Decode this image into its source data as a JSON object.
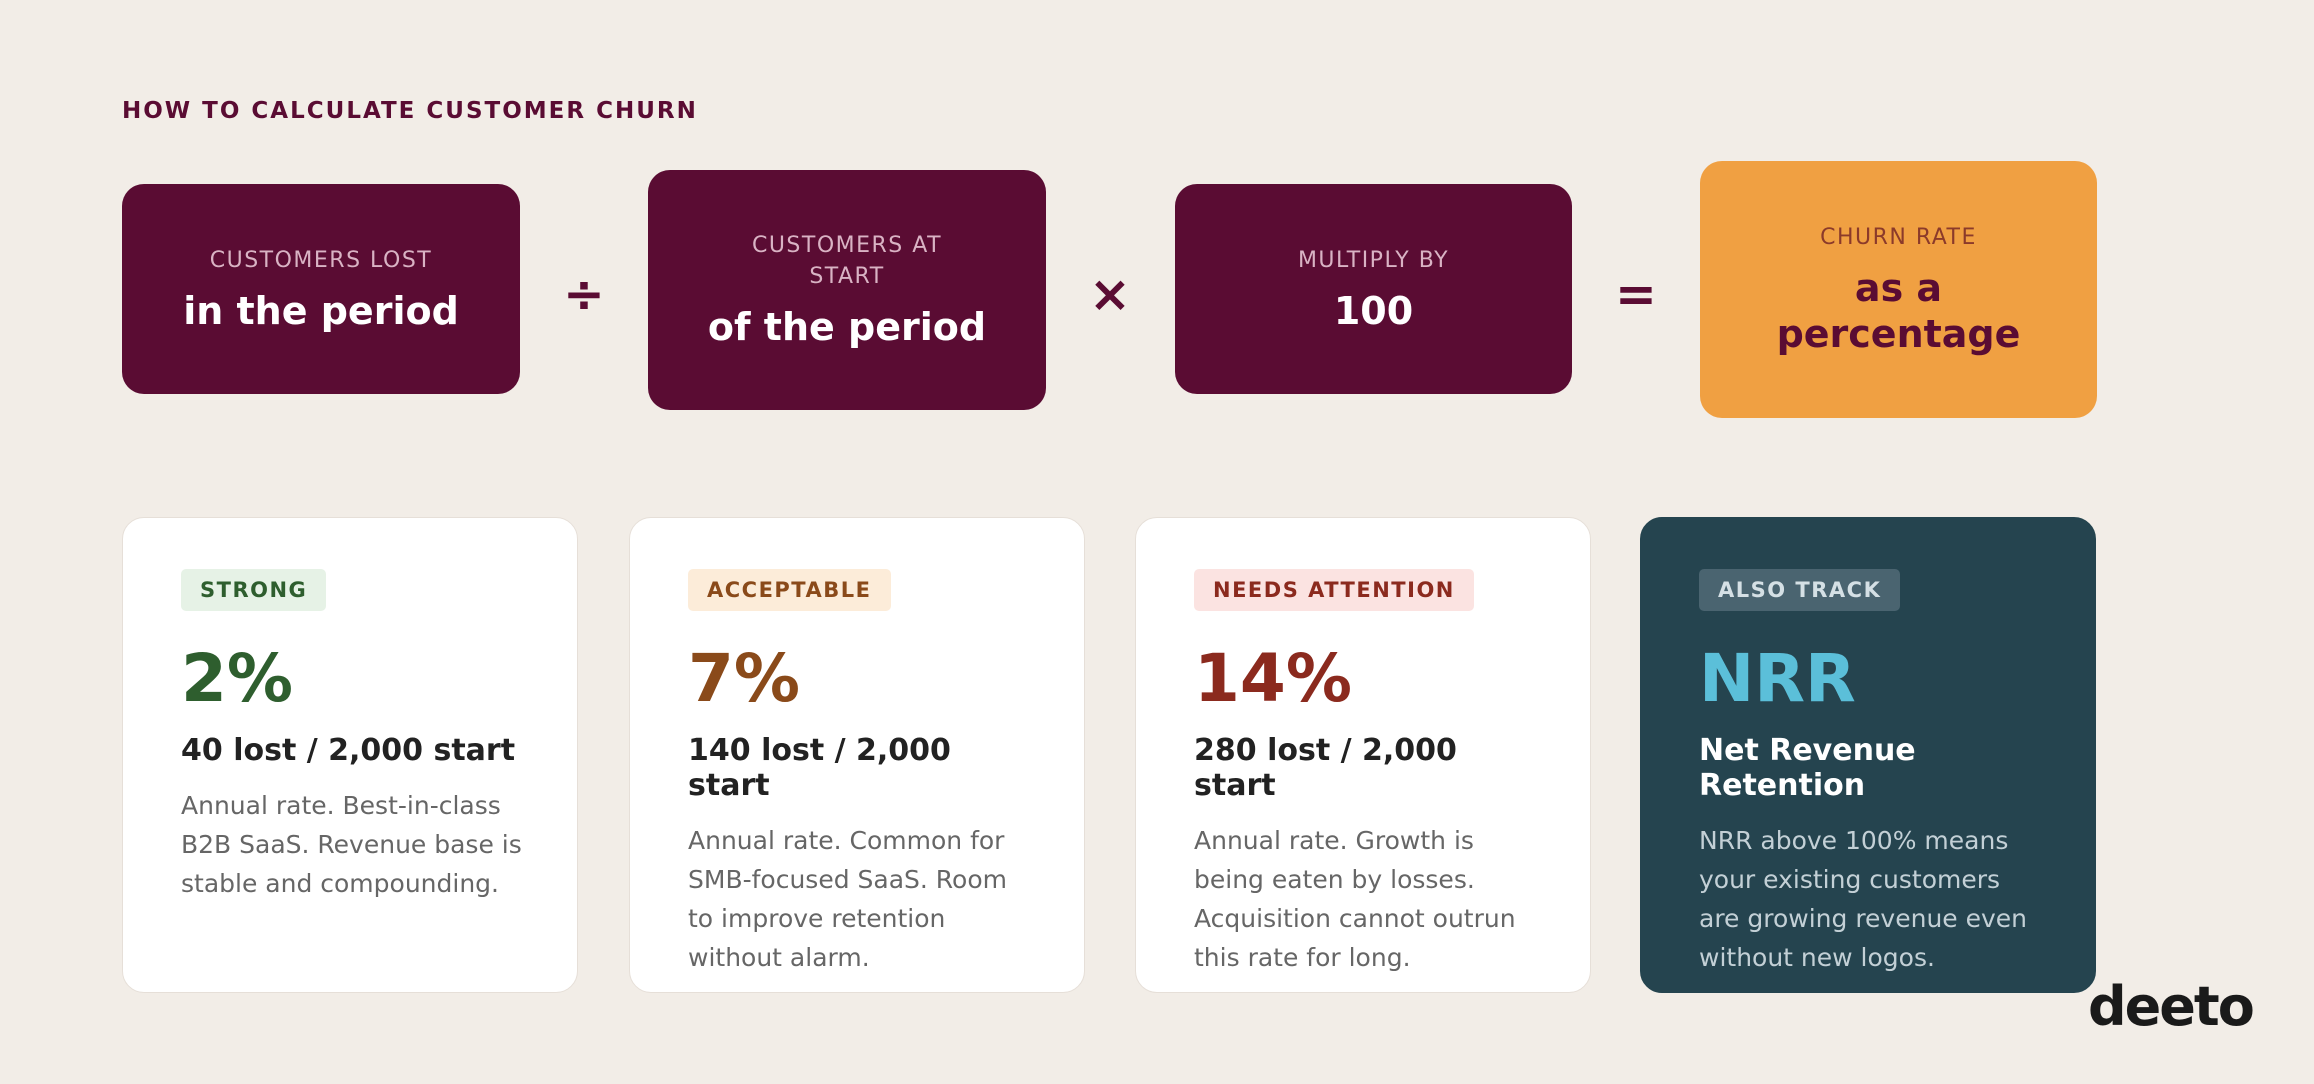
{
  "title": "HOW TO CALCULATE CUSTOMER CHURN",
  "formula": [
    {
      "label": "CUSTOMERS LOST",
      "value": "in the period"
    },
    {
      "label": "CUSTOMERS AT START",
      "value": "of the period"
    },
    {
      "label": "MULTIPLY BY",
      "value": "100"
    },
    {
      "label": "CHURN RATE",
      "value": "as a percentage"
    }
  ],
  "operators": [
    "÷",
    "×",
    "="
  ],
  "cards": [
    {
      "badge": "STRONG",
      "number": "2%",
      "subtitle": "40 lost / 2,000 start",
      "text": "Annual rate. Best-in-class B2B SaaS. Revenue base is stable and compounding."
    },
    {
      "badge": "ACCEPTABLE",
      "number": "7%",
      "subtitle": "140 lost / 2,000 start",
      "text": "Annual rate. Common for SMB-focused SaaS. Room to improve retention without alarm."
    },
    {
      "badge": "NEEDS ATTENTION",
      "number": "14%",
      "subtitle": "280 lost / 2,000 start",
      "text": "Annual rate. Growth is being eaten by losses. Acquisition cannot outrun this rate for long."
    },
    {
      "badge": "ALSO TRACK",
      "number": "NRR",
      "subtitle": "Net Revenue Retention",
      "text": "NRR above 100% means your existing customers are growing revenue even without new logos."
    }
  ],
  "logo": "deeto"
}
